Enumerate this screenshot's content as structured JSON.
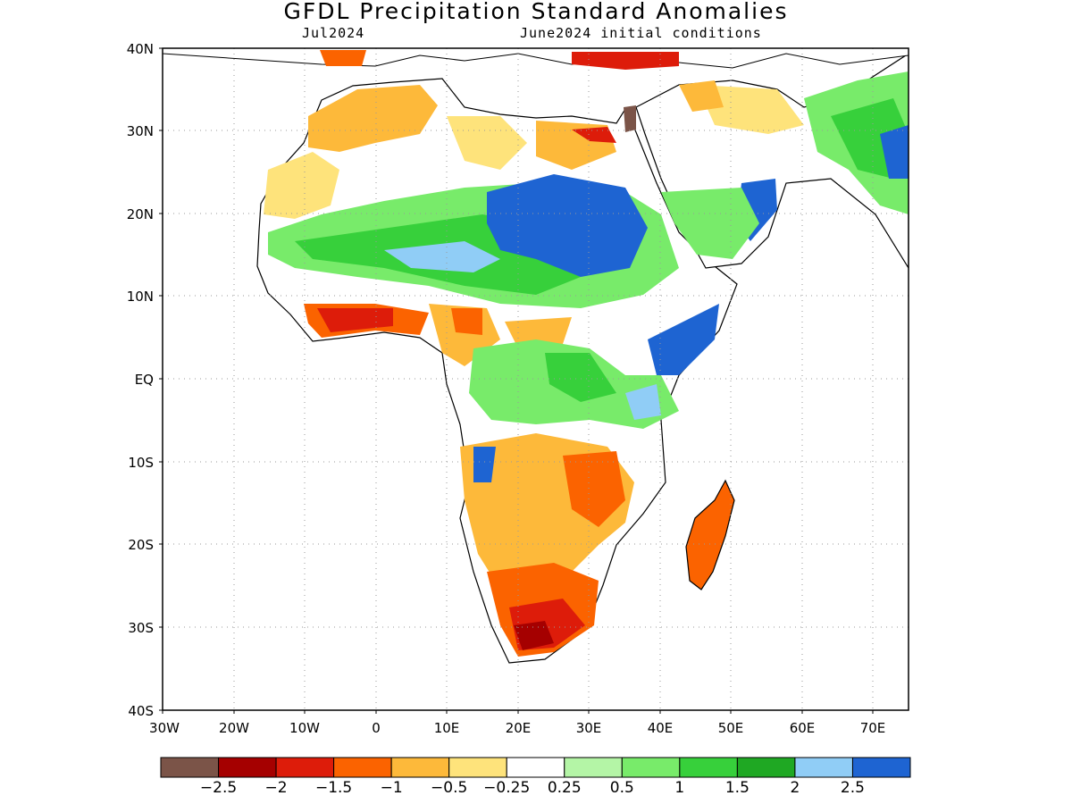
{
  "header": {
    "title": "GFDL Precipitation Standard Anomalies",
    "target_month": "Jul2024",
    "initial_conditions": "June2024 initial conditions"
  },
  "map": {
    "lat_ticks": [
      "40N",
      "30N",
      "20N",
      "10N",
      "EQ",
      "10S",
      "20S",
      "30S",
      "40S"
    ],
    "lon_ticks": [
      "30W",
      "20W",
      "10W",
      "0",
      "10E",
      "20E",
      "30E",
      "40E",
      "50E",
      "60E",
      "70E"
    ]
  },
  "colorbar": {
    "labels": [
      "-2.5",
      "-2",
      "-1.5",
      "-1",
      "-0.5",
      "-0.25",
      "0.25",
      "0.5",
      "1",
      "1.5",
      "2",
      "2.5"
    ],
    "colors": [
      "#7b5448",
      "#a50000",
      "#dd1c0a",
      "#fb6300",
      "#fdb93a",
      "#fee37b",
      "#ffffff",
      "#b4f5a6",
      "#78eb6a",
      "#37d03b",
      "#1fa823",
      "#90cdf6",
      "#1e64d2"
    ]
  }
}
